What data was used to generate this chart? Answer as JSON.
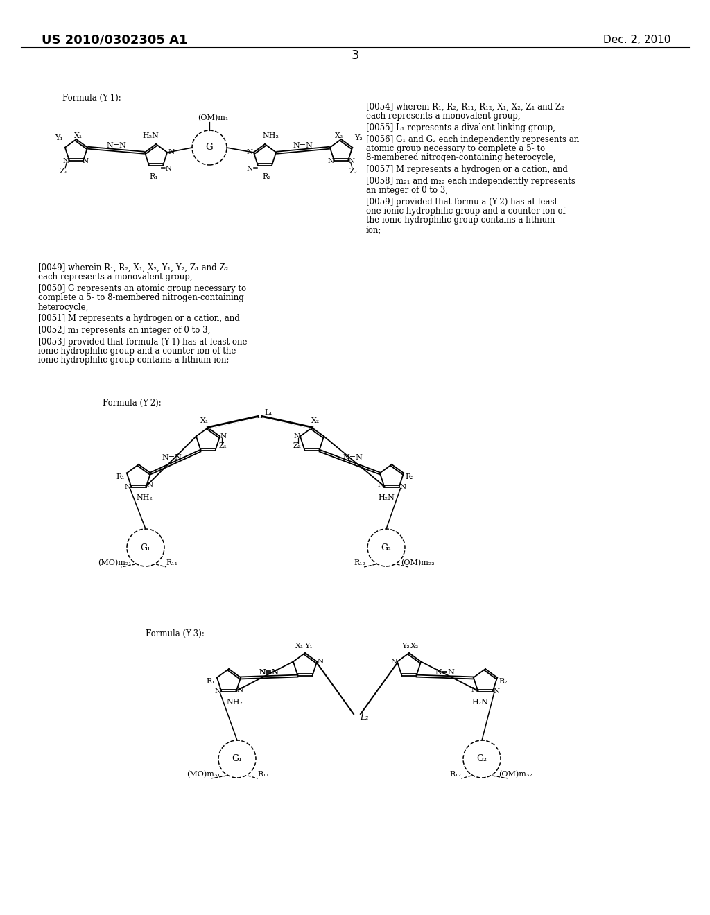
{
  "page_number": "3",
  "patent_number": "US 2010/0302305 A1",
  "date": "Dec. 2, 2010",
  "background_color": "#ffffff",
  "formula_y1_label": "Formula (Y-1):",
  "formula_y2_label": "Formula (Y-2):",
  "formula_y3_label": "Formula (Y-3):",
  "para_left": [
    {
      "tag": "[0049]",
      "text": "wherein R₁, R₂, X₁, X₂, Y₁, Y₂, Z₁ and Z₂ each represents a monovalent group,"
    },
    {
      "tag": "[0050]",
      "text": "G represents an atomic group necessary to complete a 5- to 8-membered nitrogen-containing heterocycle,"
    },
    {
      "tag": "[0051]",
      "text": "M represents a hydrogen or a cation, and"
    },
    {
      "tag": "[0052]",
      "text": "m₁ represents an integer of 0 to 3,"
    },
    {
      "tag": "[0053]",
      "text": "provided that formula (Y-1) has at least one ionic hydrophilic group and a counter ion of the ionic hydrophilic group contains a lithium ion;"
    }
  ],
  "para_right": [
    {
      "tag": "[0054]",
      "text": "wherein R₁, R₂, R₁₁, R₁₂, X₁, X₂, Z₁ and Z₂ each represents a monovalent group,"
    },
    {
      "tag": "[0055]",
      "text": "L₁ represents a divalent linking group,"
    },
    {
      "tag": "[0056]",
      "text": "G₁ and G₂ each independently represents an atomic group necessary to complete a 5- to 8-membered nitrogen-containing heterocycle,"
    },
    {
      "tag": "[0057]",
      "text": "M represents a hydrogen or a cation, and"
    },
    {
      "tag": "[0058]",
      "text": "m₂₁ and m₂₂ each independently represents an integer of 0 to 3,"
    },
    {
      "tag": "[0059]",
      "text": "provided that formula (Y-2) has at least one ionic hydrophilic group and a counter ion of the ionic hydrophilic group contains a lithium ion;"
    }
  ]
}
